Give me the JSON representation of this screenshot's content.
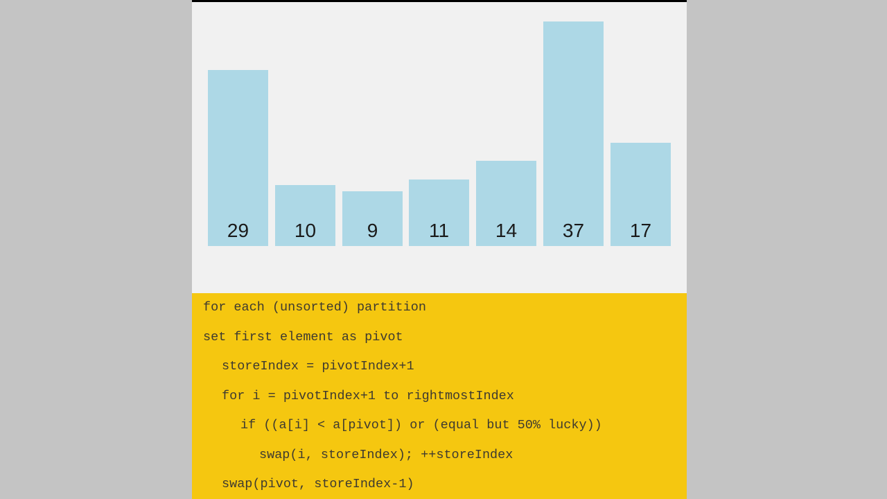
{
  "visualization": {
    "bars": [
      {
        "value": "29"
      },
      {
        "value": "10"
      },
      {
        "value": "9"
      },
      {
        "value": "11"
      },
      {
        "value": "14"
      },
      {
        "value": "37"
      },
      {
        "value": "17"
      }
    ],
    "bar_color": "#add8e6"
  },
  "pseudocode": {
    "background": "#f5c710",
    "lines": [
      {
        "text": "for each (unsorted) partition",
        "indent": 0
      },
      {
        "text": "set first element as pivot",
        "indent": 0
      },
      {
        "text": "storeIndex = pivotIndex+1",
        "indent": 1
      },
      {
        "text": "for i = pivotIndex+1 to rightmostIndex",
        "indent": 1
      },
      {
        "text": "if ((a[i] < a[pivot]) or (equal but 50% lucky))",
        "indent": 2
      },
      {
        "text": "swap(i, storeIndex); ++storeIndex",
        "indent": 3
      },
      {
        "text": "swap(pivot, storeIndex-1)",
        "indent": 1
      }
    ]
  }
}
